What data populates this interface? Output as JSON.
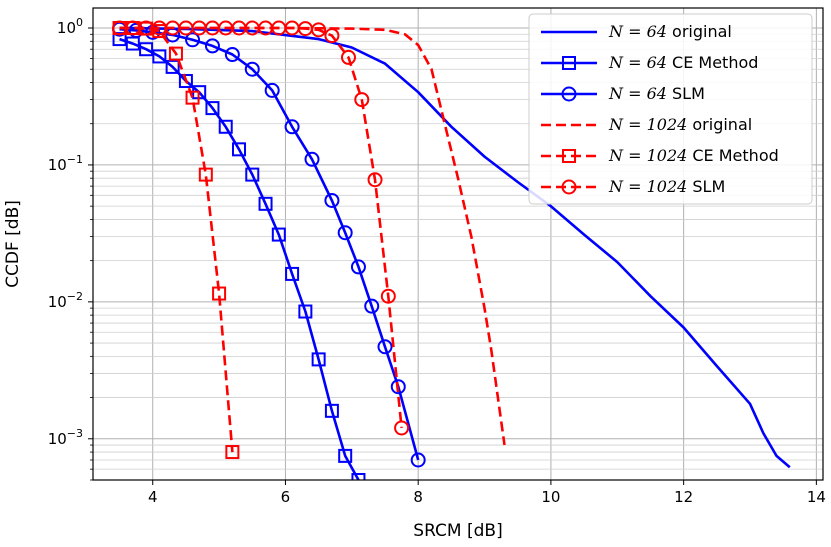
{
  "chart_data": {
    "type": "line",
    "title": "",
    "xlabel": "SRCM [dB]",
    "ylabel": "CCDF [dB]",
    "xlim": [
      3.1,
      14.1
    ],
    "ylim": [
      0.0005,
      1.4
    ],
    "yscale": "log",
    "grid": true,
    "legend_position": "top-right",
    "xticks": [
      4,
      6,
      8,
      10,
      12,
      14
    ],
    "yticks": [
      {
        "value": 1,
        "label": "10^0"
      },
      {
        "value": 0.1,
        "label": "10^-1"
      },
      {
        "value": 0.01,
        "label": "10^-2"
      },
      {
        "value": 0.001,
        "label": "10^-3"
      }
    ],
    "series": [
      {
        "name": "N = 64 original",
        "legend_math": "N = 64",
        "legend_text": "original",
        "color": "#0000ff",
        "dash": "solid",
        "marker": "none",
        "x": [
          3.5,
          4.5,
          5.5,
          6.5,
          7.0,
          7.5,
          8.0,
          8.5,
          9.0,
          9.5,
          10.0,
          10.5,
          11.0,
          11.5,
          12.0,
          12.5,
          13.0,
          13.2,
          13.4,
          13.6
        ],
        "y": [
          1.0,
          0.985,
          0.95,
          0.83,
          0.72,
          0.55,
          0.34,
          0.19,
          0.115,
          0.075,
          0.05,
          0.031,
          0.0195,
          0.011,
          0.0065,
          0.0034,
          0.0018,
          0.0011,
          0.00075,
          0.00062
        ]
      },
      {
        "name": "N = 64 CE Method",
        "legend_math": "N = 64",
        "legend_text": "CE Method",
        "color": "#0000ff",
        "dash": "solid",
        "marker": "square",
        "x": [
          3.5,
          3.7,
          3.9,
          4.1,
          4.3,
          4.5,
          4.7,
          4.9,
          5.1,
          5.3,
          5.5,
          5.7,
          5.9,
          6.1,
          6.3,
          6.5,
          6.7,
          6.9,
          7.1
        ],
        "y": [
          0.83,
          0.77,
          0.7,
          0.62,
          0.52,
          0.41,
          0.34,
          0.26,
          0.19,
          0.13,
          0.085,
          0.052,
          0.031,
          0.016,
          0.0085,
          0.0038,
          0.0016,
          0.00075,
          0.0005
        ]
      },
      {
        "name": "N = 64 SLM",
        "legend_math": "N = 64",
        "legend_text": "SLM",
        "color": "#0000ff",
        "dash": "solid",
        "marker": "circle",
        "x": [
          3.5,
          3.75,
          4.0,
          4.3,
          4.6,
          4.9,
          5.2,
          5.5,
          5.8,
          6.1,
          6.4,
          6.7,
          6.9,
          7.1,
          7.3,
          7.5,
          7.7,
          8.0
        ],
        "y": [
          0.98,
          0.96,
          0.93,
          0.89,
          0.82,
          0.74,
          0.64,
          0.5,
          0.35,
          0.19,
          0.11,
          0.055,
          0.032,
          0.018,
          0.0093,
          0.0047,
          0.0024,
          0.0007
        ]
      },
      {
        "name": "N = 1024 original",
        "legend_math": "N = 1024",
        "legend_text": "original",
        "color": "#ff0000",
        "dash": "dashed",
        "marker": "none",
        "x": [
          3.5,
          5.0,
          6.0,
          7.0,
          7.5,
          7.8,
          8.0,
          8.2,
          8.4,
          8.6,
          8.8,
          9.0,
          9.1,
          9.3
        ],
        "y": [
          1.0,
          1.0,
          1.0,
          0.99,
          0.97,
          0.9,
          0.75,
          0.5,
          0.2,
          0.08,
          0.03,
          0.009,
          0.0045,
          0.0009
        ]
      },
      {
        "name": "N = 1024 CE Method",
        "legend_math": "N = 1024",
        "legend_text": "CE Method",
        "color": "#ff0000",
        "dash": "dashed",
        "marker": "square",
        "x": [
          3.5,
          3.7,
          3.9,
          4.1,
          4.35,
          4.6,
          4.8,
          5.0,
          5.2
        ],
        "y": [
          1.0,
          1.0,
          0.99,
          0.95,
          0.65,
          0.31,
          0.085,
          0.0115,
          0.0008
        ]
      },
      {
        "name": "N = 1024 SLM",
        "legend_math": "N = 1024",
        "legend_text": "SLM",
        "color": "#ff0000",
        "dash": "dashed",
        "marker": "circle",
        "x": [
          3.5,
          3.7,
          3.9,
          4.1,
          4.3,
          4.5,
          4.7,
          4.9,
          5.1,
          5.3,
          5.5,
          5.7,
          5.9,
          6.1,
          6.3,
          6.5,
          6.7,
          6.95,
          7.15,
          7.35,
          7.55,
          7.75
        ],
        "y": [
          1.0,
          1.0,
          1.0,
          1.0,
          1.0,
          1.0,
          1.0,
          1.0,
          1.0,
          1.0,
          1.0,
          1.0,
          1.0,
          1.0,
          0.99,
          0.97,
          0.88,
          0.61,
          0.3,
          0.078,
          0.011,
          0.0012
        ]
      }
    ]
  }
}
